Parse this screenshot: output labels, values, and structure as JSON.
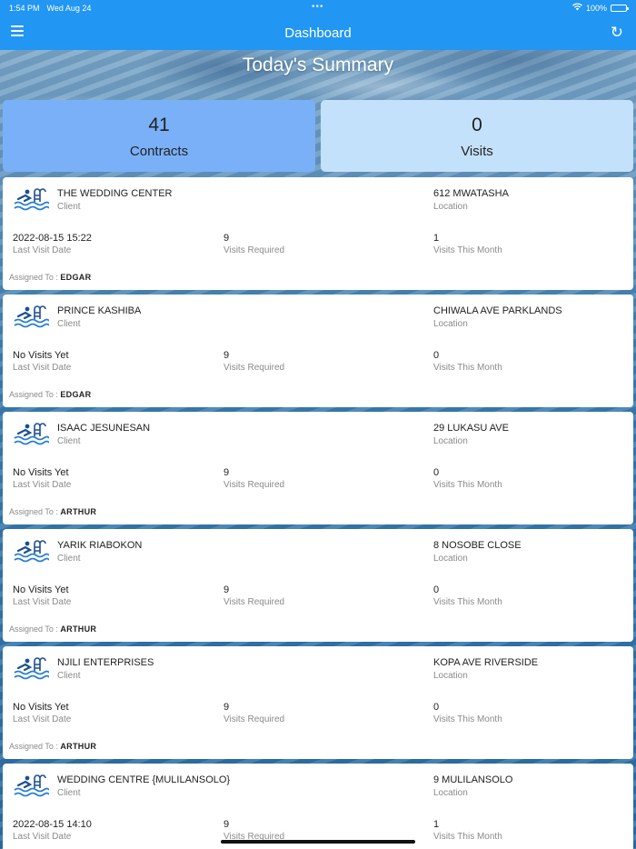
{
  "status_bar": {
    "time": "1:54 PM",
    "date": "Wed Aug 24",
    "dots": "•••",
    "battery": "100%"
  },
  "navbar": {
    "title": "Dashboard"
  },
  "summary": {
    "title": "Today's Summary",
    "contracts": {
      "value": "41",
      "label": "Contracts"
    },
    "visits": {
      "value": "0",
      "label": "Visits"
    }
  },
  "labels": {
    "client": "Client",
    "location": "Location",
    "last_visit_date": "Last Visit Date",
    "visits_required": "Visits Required",
    "visits_this_month": "Visits This Month",
    "assigned_to": "Assigned To : "
  },
  "contracts": [
    {
      "client": "THE WEDDING CENTER",
      "location": "612 MWATASHA",
      "last_visit": "2022-08-15 15:22",
      "visits_required": "9",
      "visits_this_month": "1",
      "assigned": "EDGAR"
    },
    {
      "client": "PRINCE KASHIBA",
      "location": "CHIWALA AVE PARKLANDS",
      "last_visit": "No Visits Yet",
      "visits_required": "9",
      "visits_this_month": "0",
      "assigned": "EDGAR"
    },
    {
      "client": "ISAAC JESUNESAN",
      "location": "29 LUKASU AVE",
      "last_visit": "No Visits Yet",
      "visits_required": "9",
      "visits_this_month": "0",
      "assigned": "ARTHUR"
    },
    {
      "client": "YARIK RIABOKON",
      "location": "8 NOSOBE CLOSE",
      "last_visit": "No Visits Yet",
      "visits_required": "9",
      "visits_this_month": "0",
      "assigned": "ARTHUR"
    },
    {
      "client": "NJILI ENTERPRISES",
      "location": "KOPA AVE RIVERSIDE",
      "last_visit": "No Visits Yet",
      "visits_required": "9",
      "visits_this_month": "0",
      "assigned": "ARTHUR"
    },
    {
      "client": "WEDDING CENTRE {MULILANSOLO}",
      "location": "9 MULILANSOLO",
      "last_visit": "2022-08-15 14:10",
      "visits_required": "9",
      "visits_this_month": "1",
      "assigned": ""
    }
  ]
}
